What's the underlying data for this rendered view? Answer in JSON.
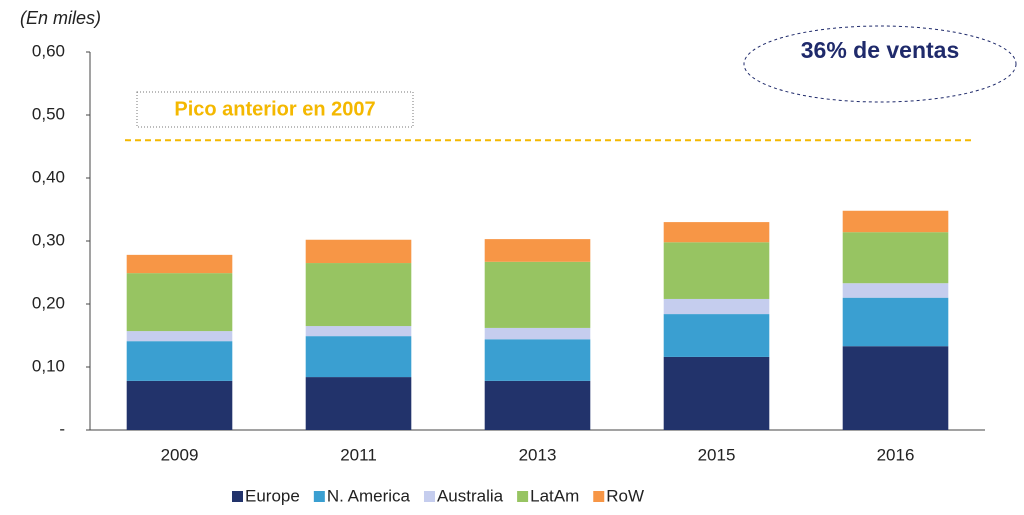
{
  "chart_data": {
    "type": "stacked_bar",
    "unit_label": "(En miles)",
    "categories": [
      "2009",
      "2011",
      "2013",
      "2015",
      "2016"
    ],
    "series": [
      {
        "name": "Europe",
        "color": "#22336b",
        "values": [
          0.078,
          0.084,
          0.078,
          0.116,
          0.133
        ]
      },
      {
        "name": "N. America",
        "color": "#3a9fd1",
        "values": [
          0.063,
          0.065,
          0.066,
          0.068,
          0.077
        ]
      },
      {
        "name": "Australia",
        "color": "#c5cdee",
        "values": [
          0.016,
          0.016,
          0.018,
          0.024,
          0.023
        ]
      },
      {
        "name": "LatAm",
        "color": "#97c462",
        "values": [
          0.092,
          0.1,
          0.105,
          0.09,
          0.081
        ]
      },
      {
        "name": "RoW",
        "color": "#f79646",
        "values": [
          0.029,
          0.037,
          0.036,
          0.032,
          0.034
        ]
      }
    ],
    "ylim": [
      0,
      0.6
    ],
    "yticks": [
      {
        "value": 0,
        "label": "-"
      },
      {
        "value": 0.1,
        "label": "0,10"
      },
      {
        "value": 0.2,
        "label": "0,20"
      },
      {
        "value": 0.3,
        "label": "0,30"
      },
      {
        "value": 0.4,
        "label": "0,40"
      },
      {
        "value": 0.5,
        "label": "0,50"
      },
      {
        "value": 0.6,
        "label": "0,60"
      }
    ],
    "reference_line": {
      "value": 0.46,
      "label": "Pico anterior en 2007",
      "color": "#f4b800"
    },
    "callout": "36% de ventas",
    "legend": "bottom"
  }
}
